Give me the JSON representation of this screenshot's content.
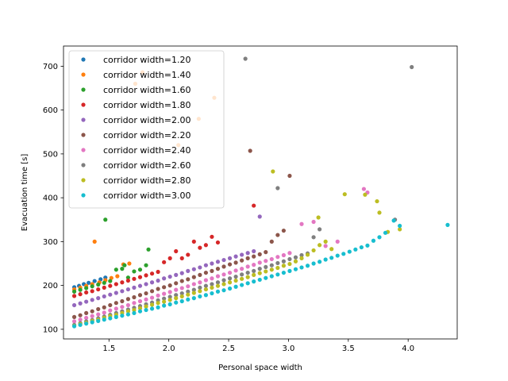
{
  "chart_data": {
    "type": "scatter",
    "title": "",
    "xlabel": "Personal space width",
    "ylabel": "Evacuation time [s]",
    "xlim": [
      1.12,
      4.41
    ],
    "ylim": [
      78,
      746
    ],
    "xticks": [
      1.5,
      2.0,
      2.5,
      3.0,
      3.5,
      4.0
    ],
    "xtick_labels": [
      "1.5",
      "2.0",
      "2.5",
      "3.0",
      "3.5",
      "4.0"
    ],
    "yticks": [
      100,
      200,
      300,
      400,
      500,
      600,
      700
    ],
    "ytick_labels": [
      "100",
      "200",
      "300",
      "400",
      "500",
      "600",
      "700"
    ],
    "legend_position": "top-left",
    "series": [
      {
        "name": "corridor width=1.20",
        "color": "#1f77b4",
        "x": [
          1.21,
          1.25,
          1.29,
          1.33,
          1.38,
          1.43,
          1.47
        ],
        "y": [
          196,
          199,
          203,
          206,
          210,
          214,
          218
        ]
      },
      {
        "name": "corridor width=1.40",
        "color": "#ff7f0e",
        "x": [
          1.21,
          1.26,
          1.31,
          1.36,
          1.38,
          1.42,
          1.47,
          1.52,
          1.57,
          1.62,
          1.67,
          1.72,
          1.78,
          2.08,
          2.25,
          2.38
        ],
        "y": [
          191,
          195,
          199,
          203,
          300,
          207,
          212,
          217,
          221,
          248,
          250,
          660,
          686,
          520,
          580,
          628
        ]
      },
      {
        "name": "corridor width=1.60",
        "color": "#2ca02c",
        "x": [
          1.21,
          1.26,
          1.31,
          1.36,
          1.41,
          1.46,
          1.47,
          1.51,
          1.56,
          1.61,
          1.63,
          1.66,
          1.71,
          1.76,
          1.81,
          1.83
        ],
        "y": [
          186,
          190,
          194,
          198,
          202,
          206,
          350,
          210,
          236,
          238,
          246,
          218,
          232,
          236,
          246,
          282
        ]
      },
      {
        "name": "corridor width=1.80",
        "color": "#d62728",
        "x": [
          1.21,
          1.26,
          1.31,
          1.36,
          1.41,
          1.46,
          1.51,
          1.56,
          1.61,
          1.66,
          1.71,
          1.76,
          1.81,
          1.86,
          1.91,
          1.96,
          2.01,
          2.06,
          2.11,
          2.16,
          2.21,
          2.26,
          2.31,
          2.36,
          2.41,
          2.71
        ],
        "y": [
          176,
          180,
          184,
          187,
          191,
          195,
          199,
          203,
          207,
          211,
          215,
          219,
          223,
          227,
          231,
          253,
          262,
          278,
          262,
          270,
          300,
          286,
          292,
          311,
          298,
          382
        ]
      },
      {
        "name": "corridor width=2.00",
        "color": "#9467bd",
        "x": [
          1.21,
          1.26,
          1.31,
          1.36,
          1.41,
          1.46,
          1.51,
          1.56,
          1.61,
          1.66,
          1.71,
          1.76,
          1.81,
          1.86,
          1.91,
          1.96,
          2.01,
          2.06,
          2.11,
          2.16,
          2.21,
          2.26,
          2.31,
          2.36,
          2.41,
          2.46,
          2.51,
          2.56,
          2.61,
          2.66,
          2.71,
          2.76
        ],
        "y": [
          155,
          159,
          163,
          167,
          171,
          175,
          179,
          183,
          187,
          191,
          195,
          199,
          203,
          207,
          211,
          216,
          220,
          224,
          228,
          233,
          237,
          241,
          246,
          250,
          254,
          258,
          262,
          266,
          270,
          274,
          278,
          357
        ]
      },
      {
        "name": "corridor width=2.20",
        "color": "#8c564b",
        "x": [
          1.21,
          1.26,
          1.31,
          1.36,
          1.41,
          1.46,
          1.51,
          1.56,
          1.61,
          1.66,
          1.71,
          1.76,
          1.81,
          1.86,
          1.91,
          1.96,
          2.01,
          2.06,
          2.11,
          2.16,
          2.21,
          2.26,
          2.31,
          2.36,
          2.41,
          2.46,
          2.51,
          2.56,
          2.61,
          2.66,
          2.71,
          2.76,
          2.81,
          2.86,
          2.91,
          2.96,
          3.01,
          2.68
        ],
        "y": [
          128,
          132,
          137,
          141,
          146,
          150,
          155,
          160,
          164,
          169,
          173,
          178,
          182,
          187,
          192,
          196,
          200,
          205,
          210,
          214,
          219,
          224,
          229,
          233,
          238,
          243,
          248,
          252,
          257,
          262,
          266,
          271,
          276,
          300,
          315,
          325,
          450,
          507
        ]
      },
      {
        "name": "corridor width=2.40",
        "color": "#e377c2",
        "x": [
          1.21,
          1.26,
          1.31,
          1.36,
          1.41,
          1.46,
          1.51,
          1.56,
          1.61,
          1.66,
          1.71,
          1.76,
          1.81,
          1.86,
          1.91,
          1.96,
          2.01,
          2.06,
          2.11,
          2.16,
          2.21,
          2.26,
          2.31,
          2.36,
          2.41,
          2.46,
          2.51,
          2.56,
          2.61,
          2.66,
          2.71,
          2.76,
          2.81,
          2.86,
          2.91,
          2.96,
          3.01,
          3.11,
          3.21,
          3.31,
          3.41,
          3.63,
          3.66
        ],
        "y": [
          118,
          122,
          126,
          130,
          134,
          138,
          143,
          147,
          151,
          155,
          160,
          164,
          168,
          172,
          177,
          181,
          185,
          190,
          194,
          198,
          203,
          207,
          212,
          216,
          221,
          225,
          229,
          234,
          238,
          243,
          247,
          252,
          256,
          260,
          265,
          269,
          274,
          340,
          345,
          290,
          300,
          420,
          412
        ]
      },
      {
        "name": "corridor width=2.60",
        "color": "#7f7f7f",
        "x": [
          1.21,
          1.26,
          1.31,
          1.36,
          1.41,
          1.46,
          1.51,
          1.56,
          1.61,
          1.66,
          1.71,
          1.76,
          1.81,
          1.86,
          1.91,
          1.96,
          2.01,
          2.06,
          2.11,
          2.16,
          2.21,
          2.26,
          2.31,
          2.36,
          2.41,
          2.46,
          2.51,
          2.56,
          2.61,
          2.66,
          2.71,
          2.76,
          2.81,
          2.86,
          2.91,
          2.96,
          3.01,
          3.06,
          3.11,
          3.16,
          3.21,
          3.26,
          2.64,
          2.91,
          3.89,
          4.03
        ],
        "y": [
          110,
          114,
          118,
          121,
          125,
          129,
          133,
          137,
          141,
          145,
          149,
          153,
          157,
          161,
          166,
          170,
          174,
          178,
          182,
          186,
          190,
          195,
          199,
          203,
          207,
          212,
          216,
          220,
          225,
          229,
          233,
          238,
          242,
          246,
          251,
          255,
          260,
          264,
          269,
          273,
          310,
          328,
          717,
          422,
          350,
          698
        ]
      },
      {
        "name": "corridor width=2.80",
        "color": "#bcbd22",
        "x": [
          1.21,
          1.26,
          1.31,
          1.36,
          1.41,
          1.46,
          1.51,
          1.56,
          1.61,
          1.66,
          1.71,
          1.76,
          1.81,
          1.86,
          1.91,
          1.96,
          2.01,
          2.06,
          2.11,
          2.16,
          2.21,
          2.26,
          2.31,
          2.36,
          2.41,
          2.46,
          2.51,
          2.56,
          2.61,
          2.66,
          2.71,
          2.76,
          2.81,
          2.86,
          2.91,
          2.96,
          3.01,
          3.06,
          3.11,
          3.16,
          3.21,
          3.26,
          3.31,
          3.36,
          2.87,
          3.25,
          3.47,
          3.64,
          3.74,
          3.76,
          3.83,
          3.93
        ],
        "y": [
          108,
          112,
          115,
          119,
          122,
          126,
          130,
          133,
          137,
          141,
          144,
          148,
          152,
          156,
          160,
          163,
          167,
          171,
          175,
          179,
          183,
          187,
          191,
          195,
          199,
          203,
          207,
          211,
          215,
          219,
          224,
          228,
          232,
          236,
          240,
          245,
          249,
          255,
          262,
          270,
          280,
          292,
          300,
          283,
          460,
          355,
          408,
          407,
          392,
          366,
          322,
          328
        ]
      },
      {
        "name": "corridor width=3.00",
        "color": "#17becf",
        "x": [
          1.21,
          1.26,
          1.31,
          1.36,
          1.41,
          1.46,
          1.51,
          1.56,
          1.61,
          1.66,
          1.71,
          1.76,
          1.81,
          1.86,
          1.91,
          1.96,
          2.01,
          2.06,
          2.11,
          2.16,
          2.21,
          2.26,
          2.31,
          2.36,
          2.41,
          2.46,
          2.51,
          2.56,
          2.61,
          2.66,
          2.71,
          2.76,
          2.81,
          2.86,
          2.91,
          2.96,
          3.01,
          3.06,
          3.11,
          3.16,
          3.21,
          3.26,
          3.31,
          3.36,
          3.41,
          3.46,
          3.51,
          3.56,
          3.61,
          3.66,
          3.71,
          3.76,
          3.81,
          3.88,
          3.93,
          4.33
        ],
        "y": [
          107,
          110,
          113,
          116,
          119,
          122,
          125,
          128,
          131,
          134,
          137,
          141,
          144,
          147,
          150,
          154,
          157,
          161,
          164,
          168,
          171,
          175,
          178,
          182,
          186,
          189,
          193,
          197,
          201,
          205,
          209,
          213,
          217,
          221,
          225,
          229,
          233,
          237,
          241,
          245,
          250,
          254,
          259,
          263,
          268,
          272,
          277,
          282,
          287,
          291,
          302,
          310,
          320,
          348,
          336,
          338
        ]
      }
    ]
  }
}
